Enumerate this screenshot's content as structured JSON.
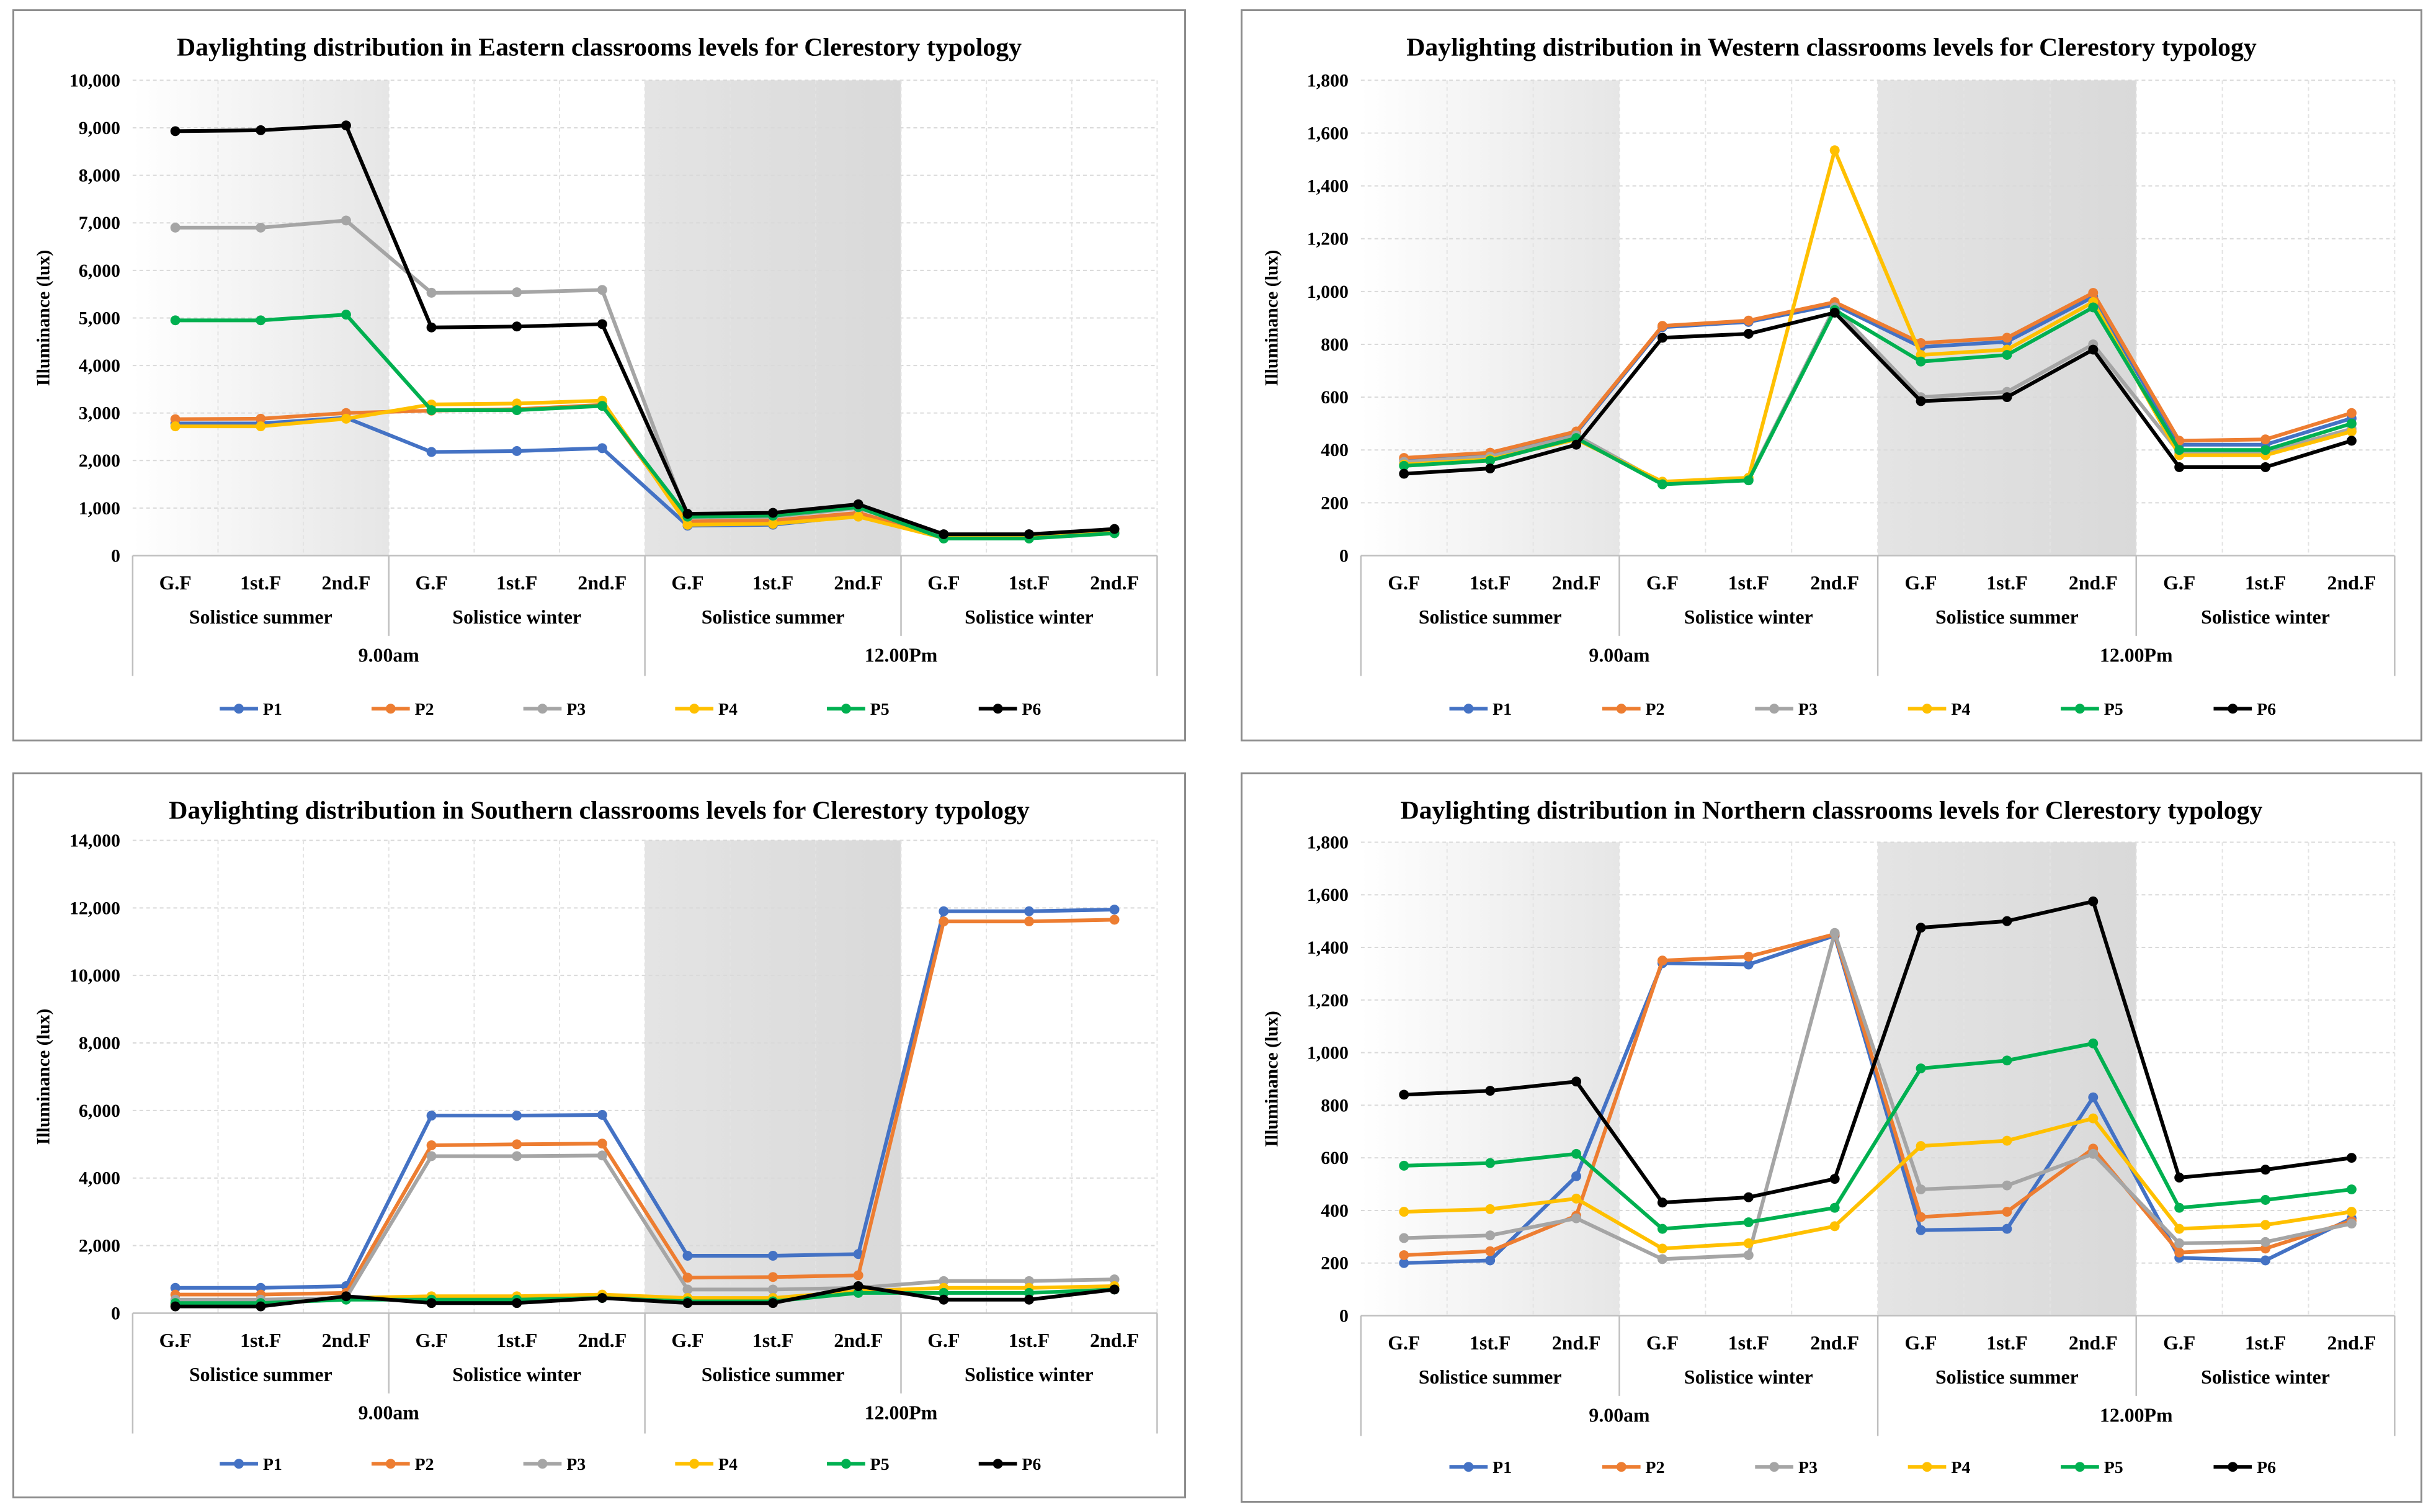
{
  "chart_data": [
    {
      "type": "line",
      "title": "Daylighting distribution in Eastern classrooms levels for Clerestory typology",
      "ylabel": "Illuminance (lux)",
      "xlabel": "",
      "ylim": [
        0,
        10000
      ],
      "yticks": [
        "0",
        "1,000",
        "2,000",
        "3,000",
        "4,000",
        "5,000",
        "6,000",
        "7,000",
        "8,000",
        "9,000",
        "10,000"
      ],
      "ystep": 1000,
      "categories": [
        "G.F",
        "1st.F",
        "2nd.F",
        "G.F",
        "1st.F",
        "2nd.F",
        "G.F",
        "1st.F",
        "2nd.F",
        "G.F",
        "1st.F",
        "2nd.F"
      ],
      "seasons": [
        "Solistice summer",
        "Solistice winter",
        "Solistice summer",
        "Solistice winter"
      ],
      "times": [
        "9.00am",
        "12.00Pm"
      ],
      "shaded_seasons": [
        0,
        2
      ],
      "series": [
        {
          "name": "P1",
          "color": "#4472c4",
          "values": [
            2780,
            2780,
            2900,
            2180,
            2200,
            2260,
            630,
            650,
            840,
            370,
            380,
            480
          ]
        },
        {
          "name": "P2",
          "color": "#ed7d31",
          "values": [
            2870,
            2880,
            3000,
            3050,
            3080,
            3170,
            720,
            740,
            900,
            390,
            400,
            500
          ]
        },
        {
          "name": "P3",
          "color": "#a5a5a5",
          "values": [
            6900,
            6900,
            7050,
            5530,
            5540,
            5590,
            800,
            820,
            1000,
            430,
            440,
            540
          ]
        },
        {
          "name": "P4",
          "color": "#ffc000",
          "values": [
            2720,
            2720,
            2880,
            3180,
            3200,
            3260,
            650,
            670,
            820,
            370,
            370,
            480
          ]
        },
        {
          "name": "P5",
          "color": "#00b050",
          "values": [
            4950,
            4950,
            5070,
            3060,
            3060,
            3150,
            820,
            840,
            1020,
            360,
            360,
            470
          ]
        },
        {
          "name": "P6",
          "color": "#000000",
          "values": [
            8930,
            8950,
            9050,
            4800,
            4820,
            4870,
            880,
            900,
            1080,
            450,
            450,
            560
          ]
        }
      ]
    },
    {
      "type": "line",
      "title": "Daylighting distribution in Western classrooms levels for Clerestory typology",
      "ylabel": "Illuminance (lux)",
      "xlabel": "",
      "ylim": [
        0,
        1800
      ],
      "yticks": [
        "0",
        "200",
        "400",
        "600",
        "800",
        "1,000",
        "1,200",
        "1,400",
        "1,600",
        "1,800"
      ],
      "ystep": 200,
      "categories": [
        "G.F",
        "1st.F",
        "2nd.F",
        "G.F",
        "1st.F",
        "2nd.F",
        "G.F",
        "1st.F",
        "2nd.F",
        "G.F",
        "1st.F",
        "2nd.F"
      ],
      "seasons": [
        "Solistice summer",
        "Solistice winter",
        "Solistice summer",
        "Solistice winter"
      ],
      "times": [
        "9.00am",
        "12.00Pm"
      ],
      "shaded_seasons": [
        0,
        2
      ],
      "series": [
        {
          "name": "P1",
          "color": "#4472c4",
          "values": [
            365,
            385,
            465,
            865,
            885,
            950,
            790,
            810,
            980,
            420,
            420,
            520
          ]
        },
        {
          "name": "P2",
          "color": "#ed7d31",
          "values": [
            370,
            390,
            470,
            870,
            890,
            960,
            805,
            825,
            995,
            435,
            440,
            540
          ]
        },
        {
          "name": "P3",
          "color": "#a5a5a5",
          "values": [
            355,
            375,
            455,
            275,
            290,
            940,
            600,
            620,
            800,
            390,
            390,
            480
          ]
        },
        {
          "name": "P4",
          "color": "#ffc000",
          "values": [
            345,
            365,
            440,
            280,
            295,
            1535,
            760,
            780,
            960,
            380,
            380,
            470
          ]
        },
        {
          "name": "P5",
          "color": "#00b050",
          "values": [
            340,
            360,
            445,
            270,
            285,
            930,
            735,
            760,
            940,
            400,
            400,
            500
          ]
        },
        {
          "name": "P6",
          "color": "#000000",
          "values": [
            310,
            330,
            420,
            825,
            840,
            920,
            585,
            600,
            780,
            335,
            335,
            435
          ]
        }
      ]
    },
    {
      "type": "line",
      "title": "Daylighting distribution in Southern classrooms levels for Clerestory typology",
      "ylabel": "Illuminance (lux)",
      "xlabel": "",
      "ylim": [
        0,
        14000
      ],
      "yticks": [
        "0",
        "2,000",
        "4,000",
        "6,000",
        "8,000",
        "10,000",
        "12,000",
        "14,000"
      ],
      "ystep": 2000,
      "categories": [
        "G.F",
        "1st.F",
        "2nd.F",
        "G.F",
        "1st.F",
        "2nd.F",
        "G.F",
        "1st.F",
        "2nd.F",
        "G.F",
        "1st.F",
        "2nd.F"
      ],
      "seasons": [
        "Solistice summer",
        "Solistice winter",
        "Solistice summer",
        "Solistice winter"
      ],
      "times": [
        "9.00am",
        "12.00Pm"
      ],
      "shaded_seasons": [
        2
      ],
      "series": [
        {
          "name": "P1",
          "color": "#4472c4",
          "values": [
            750,
            750,
            800,
            5850,
            5850,
            5870,
            1700,
            1700,
            1750,
            11900,
            11900,
            11950
          ]
        },
        {
          "name": "P2",
          "color": "#ed7d31",
          "values": [
            550,
            550,
            600,
            4970,
            5000,
            5020,
            1050,
            1070,
            1120,
            11600,
            11600,
            11650
          ]
        },
        {
          "name": "P3",
          "color": "#a5a5a5",
          "values": [
            400,
            400,
            450,
            4650,
            4650,
            4670,
            700,
            700,
            750,
            950,
            950,
            1000
          ]
        },
        {
          "name": "P4",
          "color": "#ffc000",
          "values": [
            250,
            250,
            450,
            500,
            500,
            550,
            450,
            450,
            650,
            750,
            750,
            800
          ]
        },
        {
          "name": "P5",
          "color": "#00b050",
          "values": [
            300,
            300,
            400,
            400,
            400,
            450,
            350,
            350,
            600,
            600,
            600,
            700
          ]
        },
        {
          "name": "P6",
          "color": "#000000",
          "values": [
            200,
            200,
            500,
            300,
            300,
            450,
            300,
            300,
            800,
            400,
            400,
            700
          ]
        }
      ]
    },
    {
      "type": "line",
      "title": "Daylighting distribution in Northern classrooms levels for Clerestory typology",
      "ylabel": "Illuminance (lux)",
      "xlabel": "",
      "ylim": [
        0,
        1800
      ],
      "yticks": [
        "0",
        "200",
        "400",
        "600",
        "800",
        "1,000",
        "1,200",
        "1,400",
        "1,600",
        "1,800"
      ],
      "ystep": 200,
      "categories": [
        "G.F",
        "1st.F",
        "2nd.F",
        "G.F",
        "1st.F",
        "2nd.F",
        "G.F",
        "1st.F",
        "2nd.F",
        "G.F",
        "1st.F",
        "2nd.F"
      ],
      "seasons": [
        "Solistice summer",
        "Solistice winter",
        "Solistice summer",
        "Solistice winter"
      ],
      "times": [
        "9.00am",
        "12.00Pm"
      ],
      "shaded_seasons": [
        0,
        2
      ],
      "series": [
        {
          "name": "P1",
          "color": "#4472c4",
          "values": [
            200,
            210,
            530,
            1340,
            1335,
            1445,
            325,
            330,
            830,
            220,
            210,
            370
          ]
        },
        {
          "name": "P2",
          "color": "#ed7d31",
          "values": [
            230,
            245,
            380,
            1350,
            1365,
            1450,
            375,
            395,
            635,
            240,
            255,
            360
          ]
        },
        {
          "name": "P3",
          "color": "#a5a5a5",
          "values": [
            295,
            305,
            370,
            215,
            230,
            1455,
            480,
            495,
            615,
            275,
            280,
            350
          ]
        },
        {
          "name": "P4",
          "color": "#ffc000",
          "values": [
            395,
            405,
            445,
            255,
            275,
            340,
            645,
            665,
            750,
            330,
            345,
            395
          ]
        },
        {
          "name": "P5",
          "color": "#00b050",
          "values": [
            570,
            580,
            615,
            330,
            355,
            410,
            940,
            970,
            1035,
            410,
            440,
            480
          ]
        },
        {
          "name": "P6",
          "color": "#000000",
          "values": [
            840,
            855,
            890,
            430,
            450,
            520,
            1475,
            1500,
            1575,
            525,
            555,
            600
          ]
        }
      ]
    }
  ]
}
